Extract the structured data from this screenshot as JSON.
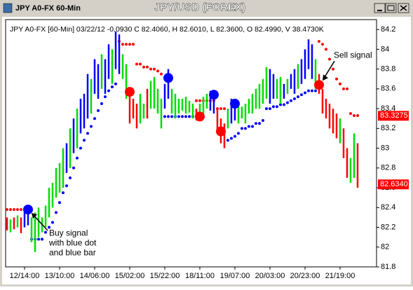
{
  "window_title": "JPY A0-FX 60-Min",
  "chart_data": {
    "type": "ohlc",
    "title": "JPY/USD (FOREX)",
    "info": "JPY A0-FX [60-Min] 03/22/12 -0.0930 C 82.4060, H 82.6010, L 82.3600, O 82.4990, V 38.4730K",
    "ylim": [
      81.8,
      84.3
    ],
    "yticks": [
      81.8,
      82,
      82.2,
      82.4,
      82.6,
      82.8,
      83,
      83.2,
      83.4,
      83.6,
      83.8,
      84,
      84.2
    ],
    "xticks": [
      {
        "value": 5,
        "label": "12/14:00"
      },
      {
        "value": 15,
        "label": "13/10:00"
      },
      {
        "value": 25,
        "label": "14/06:00"
      },
      {
        "value": 35,
        "label": "15/02:00"
      },
      {
        "value": 45,
        "label": "15/22:00"
      },
      {
        "value": 55,
        "label": "18/11:00"
      },
      {
        "value": 65,
        "label": "19/07:00"
      },
      {
        "value": 75,
        "label": "20/03:00"
      },
      {
        "value": 85,
        "label": "20/23:00"
      },
      {
        "value": 95,
        "label": "21/19:00"
      }
    ],
    "high": [
      82.3,
      82.28,
      82.3,
      82.32,
      82.3,
      82.35,
      82.38,
      82.3,
      82.35,
      82.4,
      82.3,
      82.42,
      82.6,
      82.65,
      82.8,
      82.85,
      83.0,
      83.05,
      83.2,
      83.3,
      83.4,
      83.5,
      83.55,
      83.75,
      83.7,
      83.9,
      83.85,
      83.95,
      83.9,
      84.05,
      84.0,
      84.18,
      84.15,
      83.95,
      83.85,
      83.6,
      83.5,
      83.45,
      83.55,
      83.45,
      83.6,
      83.68,
      83.72,
      83.6,
      83.5,
      83.65,
      83.8,
      83.6,
      83.55,
      83.5,
      83.5,
      83.52,
      83.48,
      83.45,
      83.4,
      83.45,
      83.52,
      83.55,
      83.58,
      83.5,
      83.4,
      83.3,
      83.25,
      83.4,
      83.5,
      83.48,
      83.45,
      83.42,
      83.45,
      83.5,
      83.55,
      83.6,
      83.65,
      83.7,
      83.82,
      83.8,
      83.75,
      83.7,
      83.72,
      83.65,
      83.7,
      83.75,
      83.8,
      83.85,
      83.9,
      84.0,
      84.1,
      84.05,
      83.9,
      83.75,
      83.6,
      83.5,
      83.45,
      83.4,
      83.35,
      83.3,
      83.2,
      83.0,
      82.9,
      83.15,
      83.05
    ],
    "low": [
      82.17,
      82.15,
      82.18,
      82.2,
      82.14,
      82.2,
      82.22,
      82.05,
      81.95,
      82.1,
      82.15,
      82.2,
      82.3,
      82.4,
      82.5,
      82.55,
      82.6,
      82.75,
      82.8,
      82.95,
      83.0,
      83.15,
      83.2,
      83.3,
      83.35,
      83.55,
      83.5,
      83.6,
      83.55,
      83.7,
      83.65,
      83.8,
      83.75,
      83.7,
      83.5,
      83.25,
      83.3,
      83.2,
      83.25,
      83.3,
      83.3,
      83.4,
      83.4,
      83.35,
      83.2,
      83.4,
      83.5,
      83.35,
      83.3,
      83.35,
      83.38,
      83.35,
      83.36,
      83.3,
      83.28,
      83.3,
      83.35,
      83.4,
      83.38,
      83.35,
      83.15,
      83.05,
      83.0,
      83.2,
      83.25,
      83.28,
      83.25,
      83.3,
      83.25,
      83.35,
      83.35,
      83.4,
      83.4,
      83.45,
      83.5,
      83.45,
      83.5,
      83.5,
      83.45,
      83.5,
      83.55,
      83.6,
      83.55,
      83.6,
      83.65,
      83.7,
      83.8,
      83.7,
      83.6,
      83.55,
      83.35,
      83.3,
      83.2,
      83.15,
      83.1,
      83.05,
      82.9,
      82.7,
      82.65,
      82.7,
      82.6
    ],
    "colors": [
      "#ff0000",
      "#00dd00",
      "#ff0000",
      "#00dd00",
      "#ff0000",
      "#0000ff",
      "#0000ff",
      "#00dd00",
      "#00dd00",
      "#00dd00",
      "#00dd00",
      "#00dd00",
      "#00dd00",
      "#00dd00",
      "#00dd00",
      "#00dd00",
      "#00dd00",
      "#0000ff",
      "#00dd00",
      "#0000ff",
      "#00dd00",
      "#0000ff",
      "#0000ff",
      "#0000ff",
      "#00dd00",
      "#0000ff",
      "#0000ff",
      "#00dd00",
      "#0000ff",
      "#0000ff",
      "#00dd00",
      "#0000ff",
      "#0000ff",
      "#00dd00",
      "#00dd00",
      "#ff0000",
      "#ff0000",
      "#ff0000",
      "#00dd00",
      "#00dd00",
      "#ff0000",
      "#00dd00",
      "#00dd00",
      "#00dd00",
      "#00dd00",
      "#0000ff",
      "#0000ff",
      "#00dd00",
      "#00dd00",
      "#00dd00",
      "#00dd00",
      "#00dd00",
      "#00dd00",
      "#00dd00",
      "#ff0000",
      "#00dd00",
      "#00dd00",
      "#00dd00",
      "#0000ff",
      "#0000ff",
      "#ff0000",
      "#ff0000",
      "#ff0000",
      "#00dd00",
      "#0000ff",
      "#0000ff",
      "#00dd00",
      "#00dd00",
      "#00dd00",
      "#00dd00",
      "#00dd00",
      "#00dd00",
      "#00dd00",
      "#00dd00",
      "#00dd00",
      "#0000ff",
      "#0000ff",
      "#00dd00",
      "#00dd00",
      "#0000ff",
      "#00dd00",
      "#0000ff",
      "#0000ff",
      "#00dd00",
      "#0000ff",
      "#0000ff",
      "#0000ff",
      "#0000ff",
      "#00dd00",
      "#ff0000",
      "#ff0000",
      "#ff0000",
      "#ff0000",
      "#ff0000",
      "#ff0000",
      "#00dd00",
      "#ff0000",
      "#ff0000",
      "#00dd00",
      "#00dd00",
      "#ff0000"
    ],
    "stops": [
      82.38,
      82.38,
      82.38,
      82.38,
      82.38,
      82.38,
      82.38,
      82.08,
      82.08,
      82.08,
      82.08,
      82.15,
      82.2,
      82.25,
      82.35,
      82.45,
      82.55,
      82.62,
      82.7,
      82.8,
      82.9,
      83.0,
      83.08,
      83.15,
      83.22,
      83.3,
      83.38,
      83.45,
      83.52,
      83.58,
      83.62,
      83.65,
      84.08,
      84.05,
      84.05,
      84.05,
      84.05,
      83.85,
      83.85,
      83.82,
      83.82,
      83.8,
      83.8,
      83.78,
      83.75,
      83.32,
      83.32,
      83.32,
      83.32,
      83.32,
      83.32,
      83.32,
      83.32,
      83.32,
      83.48,
      83.48,
      83.48,
      83.48,
      83.48,
      83.48,
      83.4,
      83.4,
      83.4,
      83.08,
      83.1,
      83.12,
      83.15,
      83.2,
      83.2,
      83.22,
      83.22,
      83.25,
      83.25,
      83.28,
      83.4,
      83.4,
      83.42,
      83.42,
      83.44,
      83.44,
      83.46,
      83.48,
      83.5,
      83.52,
      83.54,
      83.56,
      83.58,
      83.58,
      83.58,
      84.08,
      84.05,
      84.0,
      83.9,
      83.8,
      83.7,
      83.65,
      83.6,
      83.6,
      83.35,
      83.33,
      83.33
    ],
    "stop_colors": [
      "#ff0000",
      "#ff0000",
      "#ff0000",
      "#ff0000",
      "#ff0000",
      "#ff0000",
      "#ff0000",
      "#0000ff",
      "#0000ff",
      "#0000ff",
      "#0000ff",
      "#0000ff",
      "#0000ff",
      "#0000ff",
      "#0000ff",
      "#0000ff",
      "#0000ff",
      "#0000ff",
      "#0000ff",
      "#0000ff",
      "#0000ff",
      "#0000ff",
      "#0000ff",
      "#0000ff",
      "#0000ff",
      "#0000ff",
      "#0000ff",
      "#0000ff",
      "#0000ff",
      "#0000ff",
      "#0000ff",
      "#0000ff",
      "#ff0000",
      "#ff0000",
      "#ff0000",
      "#ff0000",
      "#ff0000",
      "#ff0000",
      "#ff0000",
      "#ff0000",
      "#ff0000",
      "#ff0000",
      "#ff0000",
      "#ff0000",
      "#ff0000",
      "#0000ff",
      "#0000ff",
      "#0000ff",
      "#0000ff",
      "#0000ff",
      "#0000ff",
      "#0000ff",
      "#0000ff",
      "#0000ff",
      "#ff0000",
      "#ff0000",
      "#ff0000",
      "#ff0000",
      "#ff0000",
      "#ff0000",
      "#ff0000",
      "#ff0000",
      "#ff0000",
      "#0000ff",
      "#0000ff",
      "#0000ff",
      "#0000ff",
      "#0000ff",
      "#0000ff",
      "#0000ff",
      "#0000ff",
      "#0000ff",
      "#0000ff",
      "#0000ff",
      "#0000ff",
      "#0000ff",
      "#0000ff",
      "#0000ff",
      "#0000ff",
      "#0000ff",
      "#0000ff",
      "#0000ff",
      "#0000ff",
      "#0000ff",
      "#0000ff",
      "#0000ff",
      "#0000ff",
      "#0000ff",
      "#0000ff",
      "#ff0000",
      "#ff0000",
      "#ff0000",
      "#ff0000",
      "#ff0000",
      "#ff0000",
      "#ff0000",
      "#ff0000",
      "#ff0000",
      "#ff0000",
      "#ff0000",
      "#ff0000"
    ],
    "signals": [
      {
        "x": 6,
        "value": 82.38,
        "color": "#0000ff"
      },
      {
        "x": 35,
        "value": 83.57,
        "color": "#ff0000"
      },
      {
        "x": 46,
        "value": 83.71,
        "color": "#0000ff"
      },
      {
        "x": 55,
        "value": 83.32,
        "color": "#ff0000"
      },
      {
        "x": 59,
        "value": 83.54,
        "color": "#0000ff"
      },
      {
        "x": 61,
        "value": 83.17,
        "color": "#ff0000"
      },
      {
        "x": 65,
        "value": 83.45,
        "color": "#0000ff"
      },
      {
        "x": 89,
        "value": 83.64,
        "color": "#ff0000"
      }
    ],
    "price_labels": [
      {
        "value": 83.3275,
        "label": "83.3275",
        "color": "#ff0000"
      },
      {
        "value": 82.634,
        "label": "82.6340",
        "color": "#ff0000"
      }
    ],
    "annotations": [
      {
        "lines": [
          "Buy signal",
          "with blue dot",
          "and blue bar"
        ],
        "x": 6,
        "value": 82.38
      },
      {
        "lines": [
          "Sell signal"
        ],
        "x": 89,
        "value": 83.64
      }
    ]
  }
}
